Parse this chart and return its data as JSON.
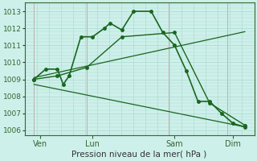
{
  "xlabel": "Pression niveau de la mer( hPa )",
  "bg_color": "#cef0ea",
  "grid_color": "#a8d8d0",
  "vline_color": "#c0a0a0",
  "line_color": "#1a6620",
  "ylim": [
    1005.7,
    1013.5
  ],
  "yticks": [
    1006,
    1007,
    1008,
    1009,
    1010,
    1011,
    1012,
    1013
  ],
  "xlim": [
    -0.3,
    19.3
  ],
  "xtick_labels": [
    "Ven",
    "Lun",
    "Sam",
    "Dim"
  ],
  "xtick_positions": [
    1.0,
    5.5,
    12.5,
    17.5
  ],
  "vlines_x": [
    0.5,
    5.0,
    12.0,
    17.0
  ],
  "lines": [
    {
      "x": [
        0.5,
        1.5,
        2.5,
        3.0,
        3.5,
        4.5,
        5.5,
        6.5,
        7.0,
        8.0,
        9.0,
        10.5,
        11.5,
        12.5,
        13.5,
        14.5,
        15.5,
        16.5,
        17.5,
        18.5
      ],
      "y": [
        1009.0,
        1009.6,
        1009.6,
        1008.7,
        1009.2,
        1011.5,
        1011.5,
        1012.0,
        1012.3,
        1011.9,
        1013.0,
        1013.0,
        1011.75,
        1011.0,
        1009.5,
        1007.7,
        1007.7,
        1007.0,
        1006.4,
        1006.2
      ],
      "markers": true,
      "markersize": 2.5,
      "linewidth": 1.2
    },
    {
      "x": [
        0.5,
        2.5,
        5.0,
        8.0,
        12.5,
        15.5,
        18.5
      ],
      "y": [
        1009.0,
        1009.2,
        1009.7,
        1011.5,
        1011.75,
        1007.6,
        1006.3
      ],
      "markers": true,
      "markersize": 2.5,
      "linewidth": 1.0
    },
    {
      "x": [
        0.5,
        18.5
      ],
      "y": [
        1009.1,
        1011.8
      ],
      "markers": false,
      "markersize": 0,
      "linewidth": 0.9
    },
    {
      "x": [
        0.5,
        18.5
      ],
      "y": [
        1008.7,
        1006.2
      ],
      "markers": false,
      "markersize": 0,
      "linewidth": 0.9
    }
  ]
}
